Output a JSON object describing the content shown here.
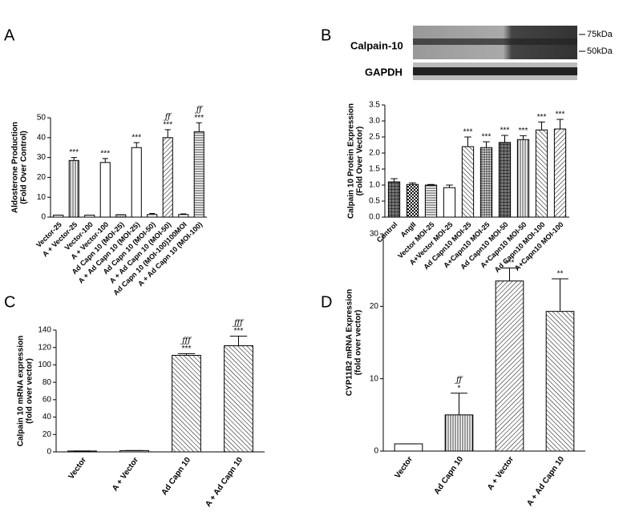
{
  "chart_data": [
    {
      "type": "bar",
      "panel_label": "A",
      "ylabel": [
        "Aldosterone Production",
        "(Fold Over Control)"
      ],
      "categories": [
        "Vector-25",
        "A + Vector-25",
        "Vector-100",
        "A + Vector-100",
        "Ad Capn 10 (MOI-25)",
        "A + Ad Capn 10 (MOI-25)",
        "Ad Capn 10 (MOI-50)",
        "A + Ad Capn 10 (MOI-50)",
        "Ad Capn 10 (MOI-100)100MOI",
        "A + Ad Capn 10 (MOI-100)"
      ],
      "values": [
        1,
        28.5,
        1,
        27.5,
        1.2,
        35,
        1.3,
        40,
        1.3,
        43
      ],
      "errors": [
        0,
        1.5,
        0,
        2,
        0,
        2.5,
        0.5,
        4,
        0.3,
        4.5
      ],
      "annotations": [
        null,
        "***",
        null,
        "***",
        null,
        "***",
        null,
        "***",
        null,
        "***"
      ],
      "annotations_top": [
        null,
        null,
        null,
        null,
        null,
        null,
        null,
        "ƒƒ",
        null,
        "ƒƒ"
      ],
      "fills": [
        "white",
        "vert",
        "white",
        "white",
        "dots",
        "white",
        "white",
        "diag",
        "white",
        "horiz"
      ],
      "color": "#000000",
      "ylim": [
        0,
        50
      ],
      "yticks": [
        0,
        10,
        20,
        30,
        40,
        50
      ]
    },
    {
      "type": "bar",
      "panel_label": "B",
      "blot": {
        "labels": [
          "Calpain-10",
          "GAPDH"
        ],
        "markers": [
          "75kDa",
          "50kDa"
        ]
      },
      "ylabel": [
        "Calpain 10 Protein Expression",
        "(Fold Over Vector)"
      ],
      "categories": [
        "Control",
        "AngII",
        "Vector MOI-25",
        "A+Vector MOI-25",
        "Ad Capn10 MOI-25",
        "A+Capn10 MOI-25",
        "Ad Capn10 MOI-50",
        "A+Capn10 MOI-50",
        "Ad Capn10 MOI-100",
        "A+Capn10 MOI-100"
      ],
      "values": [
        1.1,
        1.02,
        1.0,
        0.92,
        2.2,
        2.17,
        2.33,
        2.42,
        2.72,
        2.75
      ],
      "errors": [
        0.1,
        0.05,
        0.02,
        0.08,
        0.3,
        0.18,
        0.22,
        0.12,
        0.25,
        0.3
      ],
      "annotations": [
        null,
        null,
        null,
        null,
        "***",
        "***",
        "***",
        "***",
        "***",
        "***"
      ],
      "fills": [
        "grid",
        "check",
        "horiz",
        "white",
        "back",
        "cross",
        "grid",
        "vert",
        "back",
        "diag"
      ],
      "color": "#000000",
      "ylim": [
        0,
        3.5
      ],
      "yticks": [
        {
          "value": 0,
          "label": "0.0"
        },
        0.5,
        {
          "value": 1,
          "label": "1.0"
        },
        1.5,
        {
          "value": 2,
          "label": "2.0"
        },
        2.5,
        {
          "value": 3,
          "label": "3.0"
        },
        3.5
      ]
    },
    {
      "type": "bar",
      "panel_label": "C",
      "ylabel": [
        "Calpain 10 mRNA expression",
        "(fold over vector)"
      ],
      "categories": [
        "Vector",
        "A + Vector",
        "Ad Capn 10",
        "A + Ad Capn 10"
      ],
      "values": [
        1,
        1.5,
        111,
        122
      ],
      "errors": [
        0,
        0,
        2,
        11
      ],
      "annotations": [
        null,
        null,
        "***",
        "***"
      ],
      "annotations_top": [
        null,
        null,
        "ƒƒƒ",
        "ƒƒƒ"
      ],
      "fills": [
        "white",
        "white",
        "back",
        "back"
      ],
      "color": "#000000",
      "ylim": [
        0,
        140
      ],
      "yticks": [
        0,
        20,
        40,
        60,
        80,
        100,
        120,
        140
      ]
    },
    {
      "type": "bar",
      "panel_label": "D",
      "ylabel": [
        "CYP11B2 mRNA Expression",
        "(fold over vector)"
      ],
      "categories": [
        "Vector",
        "Ad Capn 10",
        "A + Vector",
        "A + Ad Capn 10"
      ],
      "values": [
        1,
        5,
        23.5,
        19.3
      ],
      "errors": [
        0,
        3,
        1.8,
        4.5
      ],
      "annotations": [
        null,
        "*",
        "***",
        "**"
      ],
      "annotations_top": [
        null,
        "ƒƒ",
        null,
        null
      ],
      "fills": [
        "white",
        "vert",
        "diag",
        "back"
      ],
      "color": "#000000",
      "ylim": [
        0,
        30
      ],
      "yticks": [
        0,
        10,
        20,
        30
      ]
    }
  ]
}
